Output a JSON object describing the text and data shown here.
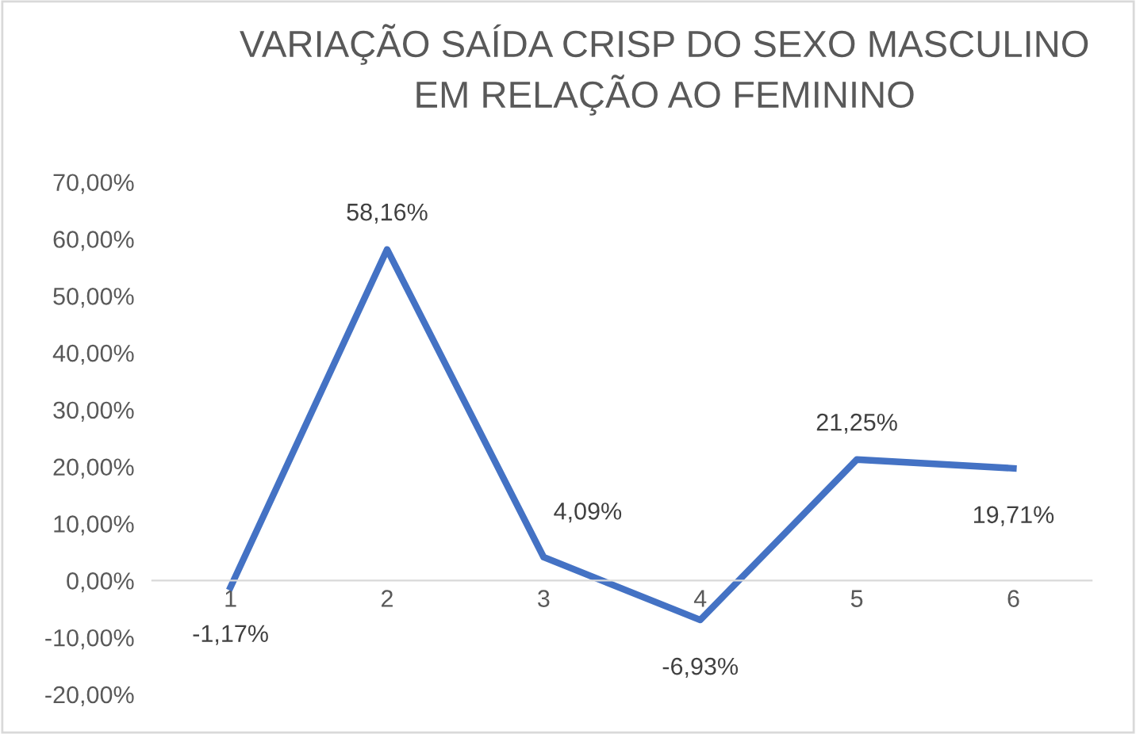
{
  "chart_data": {
    "type": "line",
    "title": "VARIAÇÃO SAÍDA CRISP DO SEXO MASCULINO\nEM RELAÇÃO AO FEMININO",
    "categories": [
      "1",
      "2",
      "3",
      "4",
      "5",
      "6"
    ],
    "series": [
      {
        "color": "#4472c4",
        "values": [
          -1.17,
          58.16,
          4.09,
          -6.93,
          21.25,
          19.71
        ],
        "value_labels": [
          "-1,17%",
          "58,16%",
          "4,09%",
          "-6,93%",
          "21,25%",
          "19,71%"
        ]
      }
    ],
    "ylim": [
      -20,
      70
    ],
    "yticks": [
      {
        "value": -20,
        "label": "-20,00%"
      },
      {
        "value": -10,
        "label": "-10,00%"
      },
      {
        "value": 0,
        "label": "0,00%"
      },
      {
        "value": 10,
        "label": "10,00%"
      },
      {
        "value": 20,
        "label": "20,00%"
      },
      {
        "value": 30,
        "label": "30,00%"
      },
      {
        "value": 40,
        "label": "40,00%"
      },
      {
        "value": 50,
        "label": "50,00%"
      },
      {
        "value": 60,
        "label": "60,00%"
      },
      {
        "value": 70,
        "label": "70,00%"
      }
    ],
    "grid": false,
    "marker": "none",
    "line_style": "solid"
  }
}
